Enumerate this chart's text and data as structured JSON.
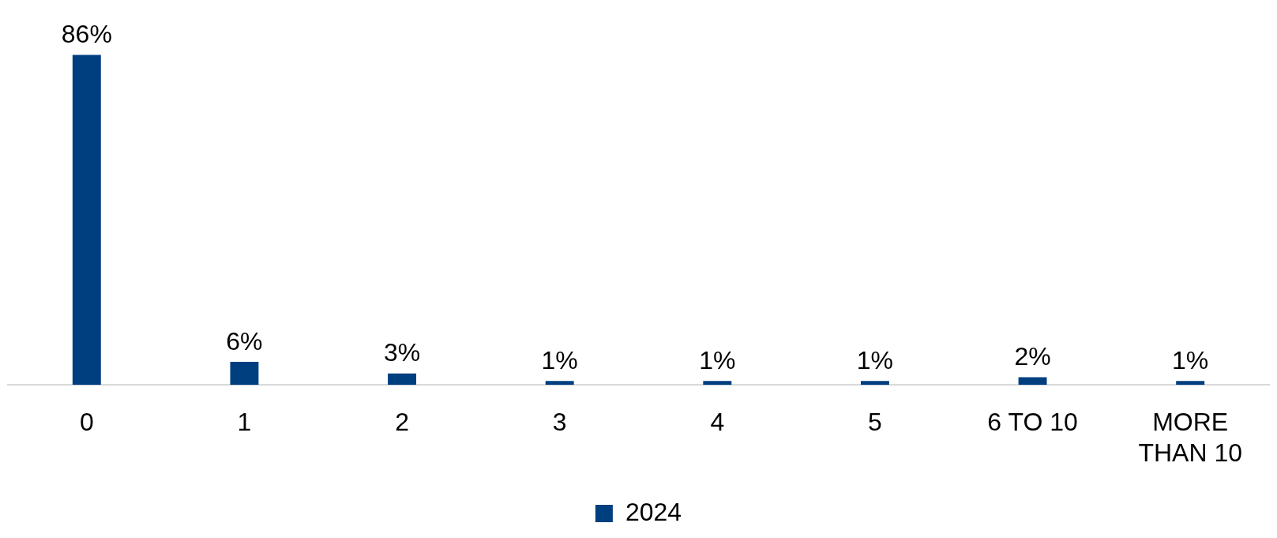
{
  "chart_data": {
    "type": "bar",
    "categories": [
      "0",
      "1",
      "2",
      "3",
      "4",
      "5",
      "6 TO 10",
      "MORE THAN 10"
    ],
    "series": [
      {
        "name": "2024",
        "color": "#003f7f",
        "values": [
          86,
          6,
          3,
          1,
          1,
          1,
          2,
          1
        ],
        "value_labels": [
          "86%",
          "6%",
          "3%",
          "1%",
          "1%",
          "1%",
          "2%",
          "1%"
        ]
      }
    ],
    "legend": "bottom",
    "grid": false
  }
}
